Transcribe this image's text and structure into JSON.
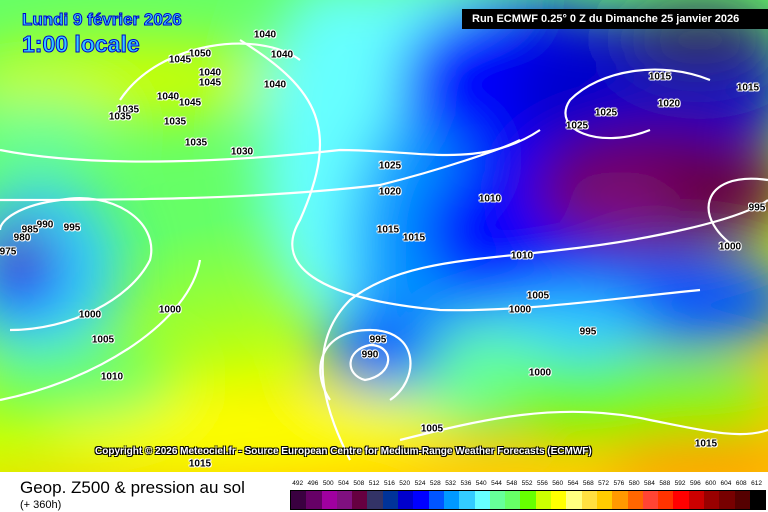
{
  "header": {
    "date": "Lundi 9 février 2026",
    "hour": "1:00 locale",
    "run": "Run ECMWF 0.25° 0 Z du Dimanche 25 janvier 2026"
  },
  "copyright": "Copyright © 2026 Meteociel.fr - Source European Centre for Medium-Range Weather Forecasts (ECMWF)",
  "footer": {
    "title": "Geop. Z500 & pression au sol",
    "subtitle": "(+ 360h)"
  },
  "legend": {
    "labels": [
      "492",
      "496",
      "500",
      "504",
      "508",
      "512",
      "516",
      "520",
      "524",
      "528",
      "532",
      "536",
      "540",
      "544",
      "548",
      "552",
      "556",
      "560",
      "564",
      "568",
      "572",
      "576",
      "580",
      "584",
      "588",
      "592",
      "596",
      "600",
      "604",
      "608",
      "612"
    ],
    "colors": [
      "#3a0040",
      "#660066",
      "#a000a0",
      "#801080",
      "#660040",
      "#333366",
      "#003399",
      "#0000cc",
      "#0000ff",
      "#0055ff",
      "#0099ff",
      "#33ccff",
      "#66ffff",
      "#66ff99",
      "#66ff66",
      "#66ff00",
      "#ccff00",
      "#ffff00",
      "#ffff80",
      "#ffe040",
      "#ffcc00",
      "#ff9900",
      "#ff6600",
      "#ff4433",
      "#ff3300",
      "#ff0000",
      "#cc0000",
      "#990000",
      "#770000",
      "#550000",
      "#000000"
    ]
  },
  "isobars": [
    "1040",
    "1040",
    "1050",
    "1045",
    "1040",
    "1045",
    "1040",
    "1040",
    "1045",
    "1035",
    "1035",
    "1035",
    "1035",
    "1030",
    "1025",
    "1020",
    "1015",
    "1015",
    "1010",
    "1010",
    "1005",
    "1000",
    "995",
    "1000",
    "1005",
    "995",
    "990",
    "1000",
    "1000",
    "1005",
    "1010",
    "1015",
    "1015",
    "1015",
    "1020",
    "1025",
    "1025",
    "1015",
    "995",
    "1000",
    "990",
    "995",
    "985",
    "980",
    "975"
  ]
}
